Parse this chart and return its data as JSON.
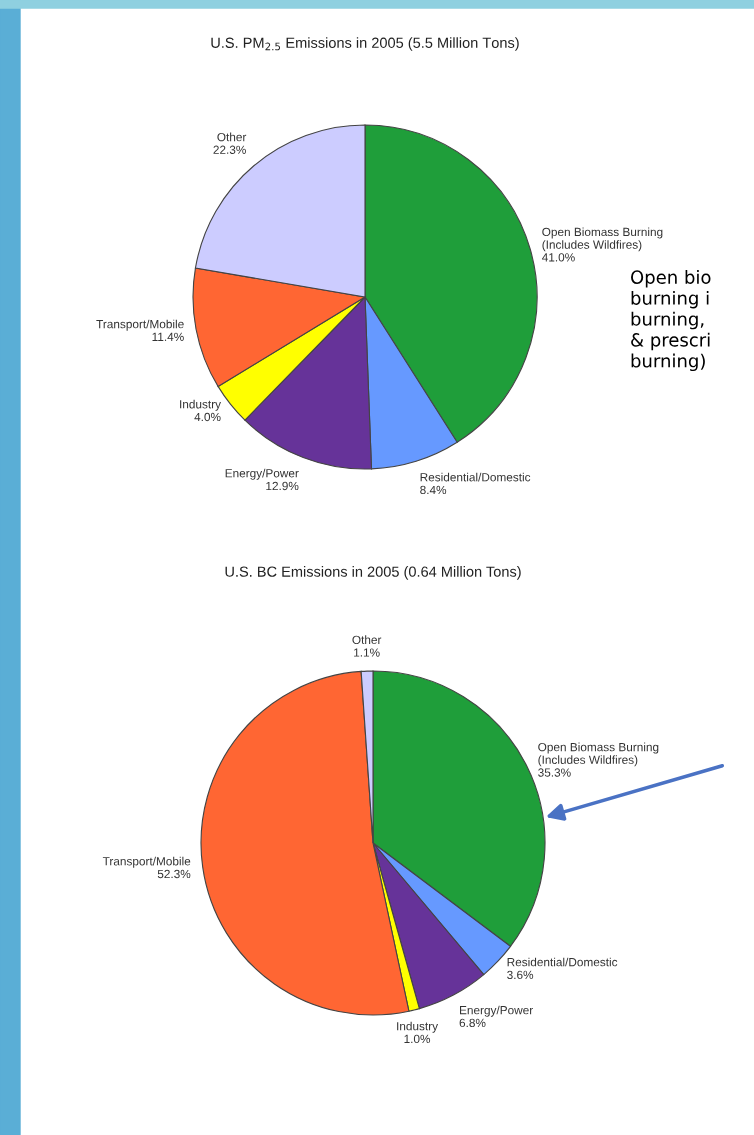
{
  "chart_data": [
    {
      "type": "pie",
      "title": "U.S. PM$_{2.5}$ Emissions in 2005 (5.5 Million Tons)",
      "categories": [
        "Open Biomass Burning\n(Includes Wildfires)",
        "Residential/Domestic",
        "Energy/Power",
        "Industry",
        "Transport/Mobile",
        "Other"
      ],
      "values": [
        41.0,
        8.4,
        12.9,
        4.0,
        11.4,
        22.3
      ],
      "value_labels": [
        "41.0%",
        "8.4%",
        "12.9%",
        "4.0%",
        "11.4%",
        "22.3%"
      ],
      "colors": [
        "#1f9e3a",
        "#6699ff",
        "#663399",
        "#ffff00",
        "#ff6633",
        "#ccccff"
      ],
      "annotations": [
        "Open bio\nburning i\nburning,\n& prescri\nburning)"
      ]
    },
    {
      "type": "pie",
      "title": "U.S. BC Emissions in 2005 (0.64 Million Tons)",
      "categories": [
        "Open Biomass Burning\n(Includes Wildfires)",
        "Residential/Domestic",
        "Energy/Power",
        "Industry",
        "Transport/Mobile",
        "Other"
      ],
      "values": [
        35.3,
        3.6,
        6.8,
        1.0,
        52.3,
        1.1
      ],
      "value_labels": [
        "35.3%",
        "3.6%",
        "6.8%",
        "1.0%",
        "52.3%",
        "1.1%"
      ],
      "colors": [
        "#1f9e3a",
        "#6699ff",
        "#663399",
        "#ffff00",
        "#ff6633",
        "#ccccff"
      ]
    }
  ]
}
